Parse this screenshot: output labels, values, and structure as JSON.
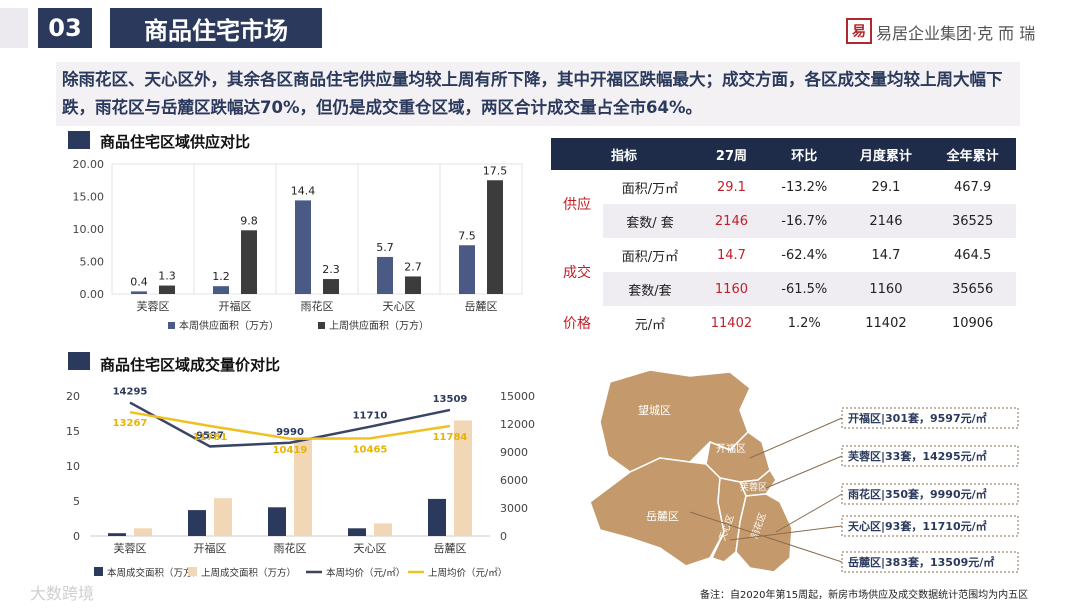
{
  "header": {
    "section_number": "03",
    "section_title": "商品住宅市场",
    "logo_mark": "易",
    "logo_text": "易居企业集团·克 而 瑞"
  },
  "summary": "除雨花区、天心区外，其余各区商品住宅供应量均较上周有所下降，其中开福区跌幅最大；成交方面，各区成交量均较上周大幅下跌，雨花区与岳麓区跌幅达70%，但仍是成交重仓区域，两区合计成交量占全市64%。",
  "chart_data": [
    {
      "type": "bar",
      "title": "商品住宅区域供应对比",
      "categories": [
        "芙蓉区",
        "开福区",
        "雨花区",
        "天心区",
        "岳麓区"
      ],
      "series": [
        {
          "name": "本周供应面积（万方）",
          "values": [
            0.4,
            1.2,
            14.4,
            5.7,
            7.5
          ],
          "color": "#4a5a85"
        },
        {
          "name": "上周供应面积（万方）",
          "values": [
            1.3,
            9.8,
            2.3,
            2.7,
            17.5
          ],
          "color": "#3c3c3c"
        }
      ],
      "ylim": [
        0,
        20
      ],
      "yticks": [
        "0.00",
        "5.00",
        "10.00",
        "15.00",
        "20.00"
      ],
      "legend": "bottom"
    },
    {
      "type": "bar",
      "title": "商品住宅区域成交量价对比",
      "categories": [
        "芙蓉区",
        "开福区",
        "雨花区",
        "天心区",
        "岳麓区"
      ],
      "series": [
        {
          "name": "本周成交面积（万方）",
          "values": [
            0.4,
            3.7,
            4.1,
            1.1,
            5.3
          ],
          "color": "#2b3a5c",
          "axis": "left"
        },
        {
          "name": "上周成交面积（万方）",
          "values": [
            1.1,
            5.4,
            14.0,
            1.8,
            16.5
          ],
          "color": "#f2d7b6",
          "axis": "left"
        },
        {
          "name": "本周均价（元/㎡）",
          "values": [
            14295,
            9597,
            9990,
            11710,
            13509
          ],
          "color": "#3a4566",
          "axis": "right",
          "type": "line"
        },
        {
          "name": "上周均价（元/㎡）",
          "values": [
            13267,
            11781,
            10419,
            10465,
            11784
          ],
          "color": "#f0c020",
          "axis": "right",
          "type": "line"
        }
      ],
      "ylim_left": [
        0,
        20
      ],
      "yticks_left": [
        "0",
        "5",
        "10",
        "15",
        "20"
      ],
      "ylim_right": [
        0,
        15000
      ],
      "yticks_right": [
        "0",
        "3000",
        "6000",
        "9000",
        "12000",
        "15000"
      ],
      "legend": "bottom"
    }
  ],
  "table": {
    "headers": [
      "指标",
      "27周",
      "环比",
      "月度累计",
      "全年累计"
    ],
    "groups": [
      {
        "label": "供应",
        "rows": [
          {
            "unit": "面积/万㎡",
            "week": "29.1",
            "mom": "-13.2%",
            "month": "29.1",
            "year": "467.9"
          },
          {
            "unit": "套数/ 套",
            "week": "2146",
            "mom": "-16.7%",
            "month": "2146",
            "year": "36525"
          }
        ]
      },
      {
        "label": "成交",
        "rows": [
          {
            "unit": "面积/万㎡",
            "week": "14.7",
            "mom": "-62.4%",
            "month": "14.7",
            "year": "464.5"
          },
          {
            "unit": "套数/套",
            "week": "1160",
            "mom": "-61.5%",
            "month": "1160",
            "year": "35656"
          }
        ]
      },
      {
        "label": "价格",
        "rows": [
          {
            "unit": "元/㎡",
            "week": "11402",
            "mom": "1.2%",
            "month": "11402",
            "year": "10906"
          }
        ]
      }
    ]
  },
  "map": {
    "regions": [
      "望城区",
      "开福区",
      "芙蓉区",
      "岳麓区",
      "天心区",
      "雨花区"
    ],
    "callouts": [
      "开福区|301套，9597元/㎡",
      "芙蓉区|33套，14295元/㎡",
      "雨花区|350套，9990元/㎡",
      "天心区|93套，11710元/㎡",
      "岳麓区|383套，13509元/㎡"
    ]
  },
  "note": "备注：自2020年第15周起，新房市场供应及成交数据统计范围均为内五区",
  "watermark": "大数跨境"
}
